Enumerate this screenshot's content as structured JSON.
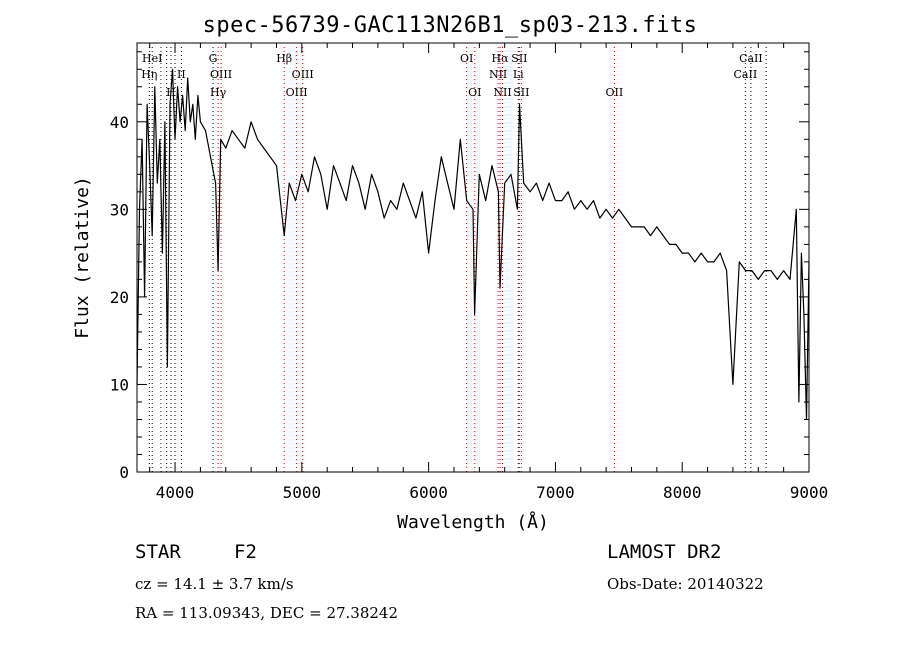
{
  "chart_data": {
    "type": "line",
    "title": "spec-56739-GAC113N26B1_sp03-213.fits",
    "xlabel": "Wavelength (Å)",
    "ylabel": "Flux (relative)",
    "xlim": [
      3700,
      9000
    ],
    "ylim": [
      0,
      49
    ],
    "xticks": [
      "4000",
      "5000",
      "6000",
      "7000",
      "8000",
      "9000"
    ],
    "yticks": [
      "0",
      "10",
      "20",
      "30",
      "40"
    ],
    "series": [
      {
        "color": "#000000",
        "x": [
          3700,
          3720,
          3740,
          3760,
          3780,
          3800,
          3820,
          3840,
          3860,
          3880,
          3900,
          3920,
          3940,
          3960,
          3980,
          4000,
          4020,
          4040,
          4060,
          4080,
          4100,
          4120,
          4140,
          4160,
          4180,
          4200,
          4240,
          4280,
          4320,
          4340,
          4360,
          4400,
          4450,
          4500,
          4550,
          4600,
          4650,
          4700,
          4750,
          4800,
          4861,
          4900,
          4950,
          5000,
          5050,
          5100,
          5150,
          5200,
          5250,
          5300,
          5350,
          5400,
          5450,
          5500,
          5550,
          5600,
          5650,
          5700,
          5750,
          5800,
          5850,
          5900,
          5950,
          6000,
          6050,
          6100,
          6150,
          6200,
          6250,
          6300,
          6350,
          6363,
          6400,
          6450,
          6500,
          6550,
          6563,
          6600,
          6650,
          6700,
          6717,
          6750,
          6800,
          6850,
          6900,
          6950,
          7000,
          7050,
          7100,
          7150,
          7200,
          7250,
          7300,
          7350,
          7400,
          7450,
          7500,
          7550,
          7600,
          7650,
          7700,
          7750,
          7800,
          7850,
          7900,
          7950,
          8000,
          8050,
          8100,
          8150,
          8200,
          8250,
          8300,
          8350,
          8400,
          8450,
          8500,
          8550,
          8600,
          8650,
          8700,
          8750,
          8800,
          8850,
          8900,
          8920,
          8940,
          8960,
          8980,
          9000
        ],
        "y": [
          10,
          30,
          38,
          20,
          42,
          35,
          27,
          44,
          33,
          38,
          25,
          40,
          12,
          42,
          46,
          38,
          44,
          40,
          43,
          39,
          45,
          40,
          42,
          38,
          43,
          40,
          39,
          36,
          33,
          23,
          38,
          37,
          39,
          38,
          37,
          40,
          38,
          37,
          36,
          35,
          27,
          33,
          31,
          34,
          32,
          36,
          34,
          30,
          35,
          33,
          31,
          35,
          33,
          30,
          34,
          32,
          29,
          31,
          30,
          33,
          31,
          29,
          32,
          25,
          31,
          36,
          33,
          30,
          38,
          31,
          30,
          18,
          34,
          31,
          35,
          32,
          21,
          33,
          34,
          30,
          42,
          33,
          32,
          33,
          31,
          33,
          31,
          31,
          32,
          30,
          31,
          30,
          31,
          29,
          30,
          29,
          30,
          29,
          28,
          28,
          28,
          27,
          28,
          27,
          26,
          26,
          25,
          25,
          24,
          25,
          24,
          24,
          25,
          23,
          10,
          24,
          23,
          23,
          22,
          23,
          23,
          22,
          23,
          22,
          30,
          8,
          25,
          18,
          6,
          24
        ]
      }
    ],
    "lines": [
      {
        "x": 3797,
        "label": "Hη",
        "row": 2,
        "color": "#000000"
      },
      {
        "x": 3820,
        "label": "HeI",
        "row": 1,
        "color": "#000000"
      },
      {
        "x": 3889,
        "label": "",
        "row": 0,
        "color": "#000000"
      },
      {
        "x": 3934,
        "label": "",
        "row": 0,
        "color": "#000000"
      },
      {
        "x": 3968,
        "label": "H",
        "row": 3,
        "color": "#000000"
      },
      {
        "x": 4000,
        "label": "",
        "row": 0,
        "color": "#000000"
      },
      {
        "x": 4050,
        "label": "II",
        "row": 2,
        "color": "#000000"
      },
      {
        "x": 4300,
        "label": "G",
        "row": 1,
        "color": "#000000"
      },
      {
        "x": 4340,
        "label": "Hγ",
        "row": 3,
        "color": "#cc0000"
      },
      {
        "x": 4363,
        "label": "OIII",
        "row": 2,
        "color": "#cc0000"
      },
      {
        "x": 4861,
        "label": "Hβ",
        "row": 1,
        "color": "#cc0000"
      },
      {
        "x": 4959,
        "label": "OIII",
        "row": 3,
        "color": "#cc0000"
      },
      {
        "x": 5007,
        "label": "OIII",
        "row": 2,
        "color": "#cc0000"
      },
      {
        "x": 6300,
        "label": "OI",
        "row": 1,
        "color": "#cc0000"
      },
      {
        "x": 6364,
        "label": "OI",
        "row": 3,
        "color": "#cc0000"
      },
      {
        "x": 6548,
        "label": "NII",
        "row": 2,
        "color": "#cc0000"
      },
      {
        "x": 6563,
        "label": "Hα",
        "row": 1,
        "color": "#cc0000"
      },
      {
        "x": 6583,
        "label": "NII",
        "row": 3,
        "color": "#cc0000"
      },
      {
        "x": 6707,
        "label": "Li",
        "row": 2,
        "color": "#000000"
      },
      {
        "x": 6716,
        "label": "SII",
        "row": 1,
        "color": "#cc0000"
      },
      {
        "x": 6731,
        "label": "SII",
        "row": 3,
        "color": "#cc0000"
      },
      {
        "x": 7465,
        "label": "OII",
        "row": 3,
        "color": "#cc0000"
      },
      {
        "x": 8498,
        "label": "CaII",
        "row": 2,
        "color": "#000000"
      },
      {
        "x": 8542,
        "label": "CaII",
        "row": 1,
        "color": "#000000"
      },
      {
        "x": 8662,
        "label": "",
        "row": 0,
        "color": "#000000"
      }
    ]
  },
  "info": {
    "class": "STAR",
    "subclass": "F2",
    "survey": "LAMOST DR2",
    "cz": "cz = 14.1 ± 3.7 km/s",
    "obsdate": "Obs-Date: 20140322",
    "radec": "RA = 113.09343, DEC =  27.38242"
  }
}
